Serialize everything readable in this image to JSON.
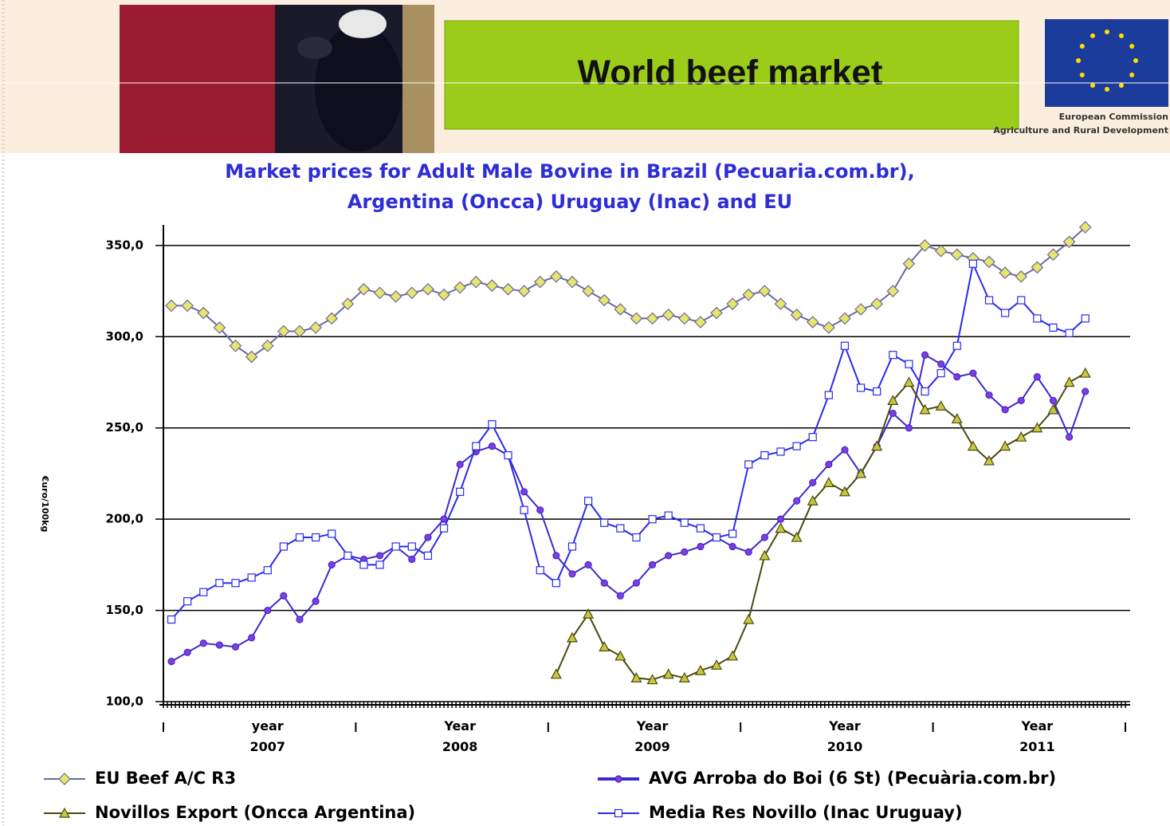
{
  "header": {
    "title": "World beef market",
    "logo_line_1": "European Commission",
    "logo_line_2": "Agriculture and Rural Development"
  },
  "chart_data": {
    "type": "line",
    "title": [
      "Market prices for Adult Male Bovine in Brazil (Pecuaria.com.br),",
      "Argentina (Oncca)  Uruguay (Inac) and EU"
    ],
    "y_label": "€uro/100kg",
    "categories": [
      null,
      null,
      null,
      null,
      null,
      null,
      "year 2007",
      null,
      null,
      null,
      null,
      null,
      null,
      null,
      null,
      null,
      null,
      null,
      "Year 2008",
      null,
      null,
      null,
      null,
      null,
      null,
      null,
      null,
      null,
      null,
      null,
      "Year 2009",
      null,
      null,
      null,
      null,
      null,
      null,
      null,
      null,
      null,
      null,
      null,
      "Year 2010",
      null,
      null,
      null,
      null,
      null,
      null,
      null,
      null,
      null,
      null,
      null,
      "Year 2011",
      null,
      null,
      null,
      null,
      null
    ],
    "ylim": [
      100,
      360
    ],
    "yticks": [
      {
        "value": 100,
        "label": "100,0"
      },
      {
        "value": 150,
        "label": "150,0"
      },
      {
        "value": 200,
        "label": "200,0"
      },
      {
        "value": 250,
        "label": "250,0"
      },
      {
        "value": 300,
        "label": "300,0"
      },
      {
        "value": 350,
        "label": "350,0"
      }
    ],
    "grid": true,
    "series": [
      {
        "name": "EU Beef A/C R3",
        "color": "#e6e66a",
        "line_color": "#6a6aa0",
        "marker": "diamond",
        "values": [
          317,
          317,
          313,
          305,
          295,
          289,
          295,
          303,
          303,
          305,
          310,
          318,
          326,
          324,
          322,
          324,
          326,
          323,
          327,
          330,
          328,
          326,
          325,
          330,
          333,
          330,
          325,
          320,
          315,
          310,
          310,
          312,
          310,
          308,
          313,
          318,
          323,
          325,
          318,
          312,
          308,
          305,
          310,
          315,
          318,
          325,
          340,
          350,
          347,
          345,
          343,
          341,
          335,
          333,
          338,
          345,
          352,
          360,
          null,
          null
        ]
      },
      {
        "name": "AVG Arroba do Boi (6 St) (Pecuària.com.br)",
        "color": "#8a3ad8",
        "line_color": "#3a2ad0",
        "marker": "circle",
        "values": [
          122,
          127,
          132,
          131,
          130,
          135,
          150,
          158,
          145,
          155,
          175,
          180,
          178,
          180,
          185,
          178,
          190,
          200,
          230,
          237,
          240,
          235,
          215,
          205,
          180,
          170,
          175,
          165,
          158,
          165,
          175,
          180,
          182,
          185,
          190,
          185,
          182,
          190,
          200,
          210,
          220,
          230,
          238,
          225,
          240,
          258,
          250,
          290,
          285,
          278,
          280,
          268,
          260,
          265,
          278,
          265,
          245,
          270,
          null,
          null
        ]
      },
      {
        "name": "Novillos Export  (Oncca Argentina)",
        "color": "#c8c840",
        "line_color": "#4a4a10",
        "marker": "triangle",
        "values": [
          null,
          null,
          null,
          null,
          null,
          null,
          null,
          null,
          null,
          null,
          null,
          null,
          null,
          null,
          null,
          null,
          null,
          null,
          null,
          null,
          null,
          null,
          null,
          null,
          115,
          135,
          148,
          130,
          125,
          113,
          112,
          115,
          113,
          117,
          120,
          125,
          145,
          180,
          195,
          190,
          210,
          220,
          215,
          225,
          240,
          265,
          275,
          260,
          262,
          255,
          240,
          232,
          240,
          245,
          250,
          260,
          275,
          280,
          null,
          null
        ]
      },
      {
        "name": "Media Res Novillo  (Inac Uruguay)",
        "color": "#ffffff",
        "line_color": "#2a2aee",
        "marker": "square",
        "values": [
          145,
          155,
          160,
          165,
          165,
          168,
          172,
          185,
          190,
          190,
          192,
          180,
          175,
          175,
          185,
          185,
          180,
          195,
          215,
          240,
          252,
          235,
          205,
          172,
          165,
          185,
          210,
          198,
          195,
          190,
          200,
          202,
          198,
          195,
          190,
          192,
          230,
          235,
          237,
          240,
          245,
          268,
          295,
          272,
          270,
          290,
          285,
          270,
          280,
          295,
          340,
          320,
          313,
          320,
          310,
          305,
          302,
          310,
          null,
          null
        ]
      }
    ]
  }
}
